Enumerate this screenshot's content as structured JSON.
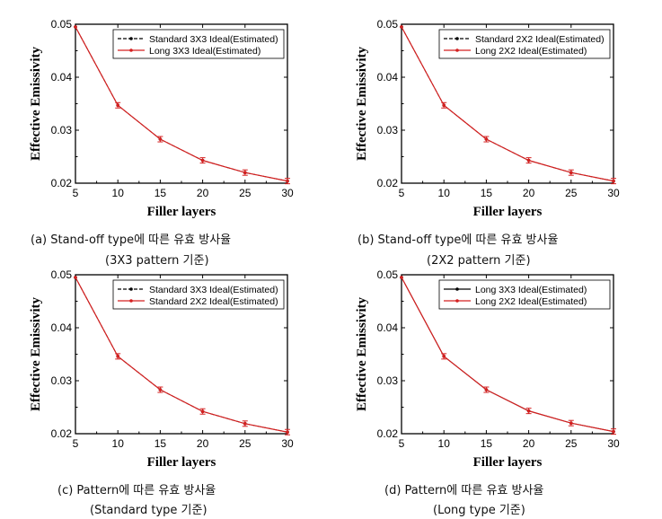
{
  "chart_data": [
    {
      "type": "line",
      "caption": "(a) Stand-off type에 따른 유효 방사율",
      "caption_sub": "(3X3 pattern 기준)",
      "xlabel": "Filler layers",
      "ylabel": "Effective Emissivity",
      "xlim": [
        5,
        30
      ],
      "ylim": [
        0.02,
        0.05
      ],
      "xticks": [
        "5",
        "10",
        "15",
        "20",
        "25",
        "30"
      ],
      "yticks": [
        "0.02",
        "0.03",
        "0.04",
        "0.05"
      ],
      "legend_position": "top-right",
      "x": [
        5,
        10,
        15,
        20,
        25,
        30
      ],
      "series": [
        {
          "name": "Standard 3X3 Ideal(Estimated)",
          "values": [
            0.0495,
            0.0347,
            0.0283,
            0.0243,
            0.022,
            0.0204
          ],
          "color": "#000000",
          "style": "dashed",
          "marker": "dot"
        },
        {
          "name": "Long 3X3 Ideal(Estimated)",
          "values": [
            0.0495,
            0.0347,
            0.0283,
            0.0243,
            0.022,
            0.0204
          ],
          "color": "#d42020",
          "style": "solid",
          "marker": "dot"
        }
      ]
    },
    {
      "type": "line",
      "caption": "(b) Stand-off type에 따른 유효 방사율",
      "caption_sub": "(2X2 pattern 기준)",
      "xlabel": "Filler layers",
      "ylabel": "Effective Emissivity",
      "xlim": [
        5,
        30
      ],
      "ylim": [
        0.02,
        0.05
      ],
      "xticks": [
        "5",
        "10",
        "15",
        "20",
        "25",
        "30"
      ],
      "yticks": [
        "0.02",
        "0.03",
        "0.04",
        "0.05"
      ],
      "legend_position": "top-right",
      "x": [
        5,
        10,
        15,
        20,
        25,
        30
      ],
      "series": [
        {
          "name": "Standard 2X2 Ideal(Estimated)",
          "values": [
            0.0495,
            0.0347,
            0.0283,
            0.0243,
            0.022,
            0.0204
          ],
          "color": "#000000",
          "style": "dashed",
          "marker": "dot"
        },
        {
          "name": "Long 2X2 Ideal(Estimated)",
          "values": [
            0.0495,
            0.0347,
            0.0283,
            0.0243,
            0.022,
            0.0204
          ],
          "color": "#d42020",
          "style": "solid",
          "marker": "dot"
        }
      ]
    },
    {
      "type": "line",
      "caption": "(c) Pattern에 따른 유효 방사율",
      "caption_sub": "(Standard type 기준)",
      "xlabel": "Filler layers",
      "ylabel": "Effective Emissivity",
      "xlim": [
        5,
        30
      ],
      "ylim": [
        0.02,
        0.05
      ],
      "xticks": [
        "5",
        "10",
        "15",
        "20",
        "25",
        "30"
      ],
      "yticks": [
        "0.02",
        "0.03",
        "0.04",
        "0.05"
      ],
      "legend_position": "top-right",
      "x": [
        5,
        10,
        15,
        20,
        25,
        30
      ],
      "series": [
        {
          "name": "Standard 3X3 Ideal(Estimated)",
          "values": [
            0.0495,
            0.0346,
            0.0283,
            0.0242,
            0.0219,
            0.0203
          ],
          "color": "#000000",
          "style": "dashed",
          "marker": "dot"
        },
        {
          "name": "Standard 2X2 Ideal(Estimated)",
          "values": [
            0.0495,
            0.0346,
            0.0283,
            0.0242,
            0.0219,
            0.0203
          ],
          "color": "#d42020",
          "style": "solid",
          "marker": "dot"
        }
      ]
    },
    {
      "type": "line",
      "caption": "(d) Pattern에 따른 유효 방사율",
      "caption_sub": "(Long type 기준)",
      "xlabel": "Filler layers",
      "ylabel": "Effective Emissivity",
      "xlim": [
        5,
        30
      ],
      "ylim": [
        0.02,
        0.05
      ],
      "xticks": [
        "5",
        "10",
        "15",
        "20",
        "25",
        "30"
      ],
      "yticks": [
        "0.02",
        "0.03",
        "0.04",
        "0.05"
      ],
      "legend_position": "top-right",
      "x": [
        5,
        10,
        15,
        20,
        25,
        30
      ],
      "series": [
        {
          "name": "Long 3X3 Ideal(Estimated)",
          "values": [
            0.0495,
            0.0346,
            0.0283,
            0.0243,
            0.022,
            0.0204
          ],
          "color": "#000000",
          "style": "solid",
          "marker": "dot"
        },
        {
          "name": "Long 2X2 Ideal(Estimated)",
          "values": [
            0.0495,
            0.0346,
            0.0283,
            0.0243,
            0.022,
            0.0204
          ],
          "color": "#d42020",
          "style": "solid",
          "marker": "dot"
        }
      ]
    }
  ]
}
